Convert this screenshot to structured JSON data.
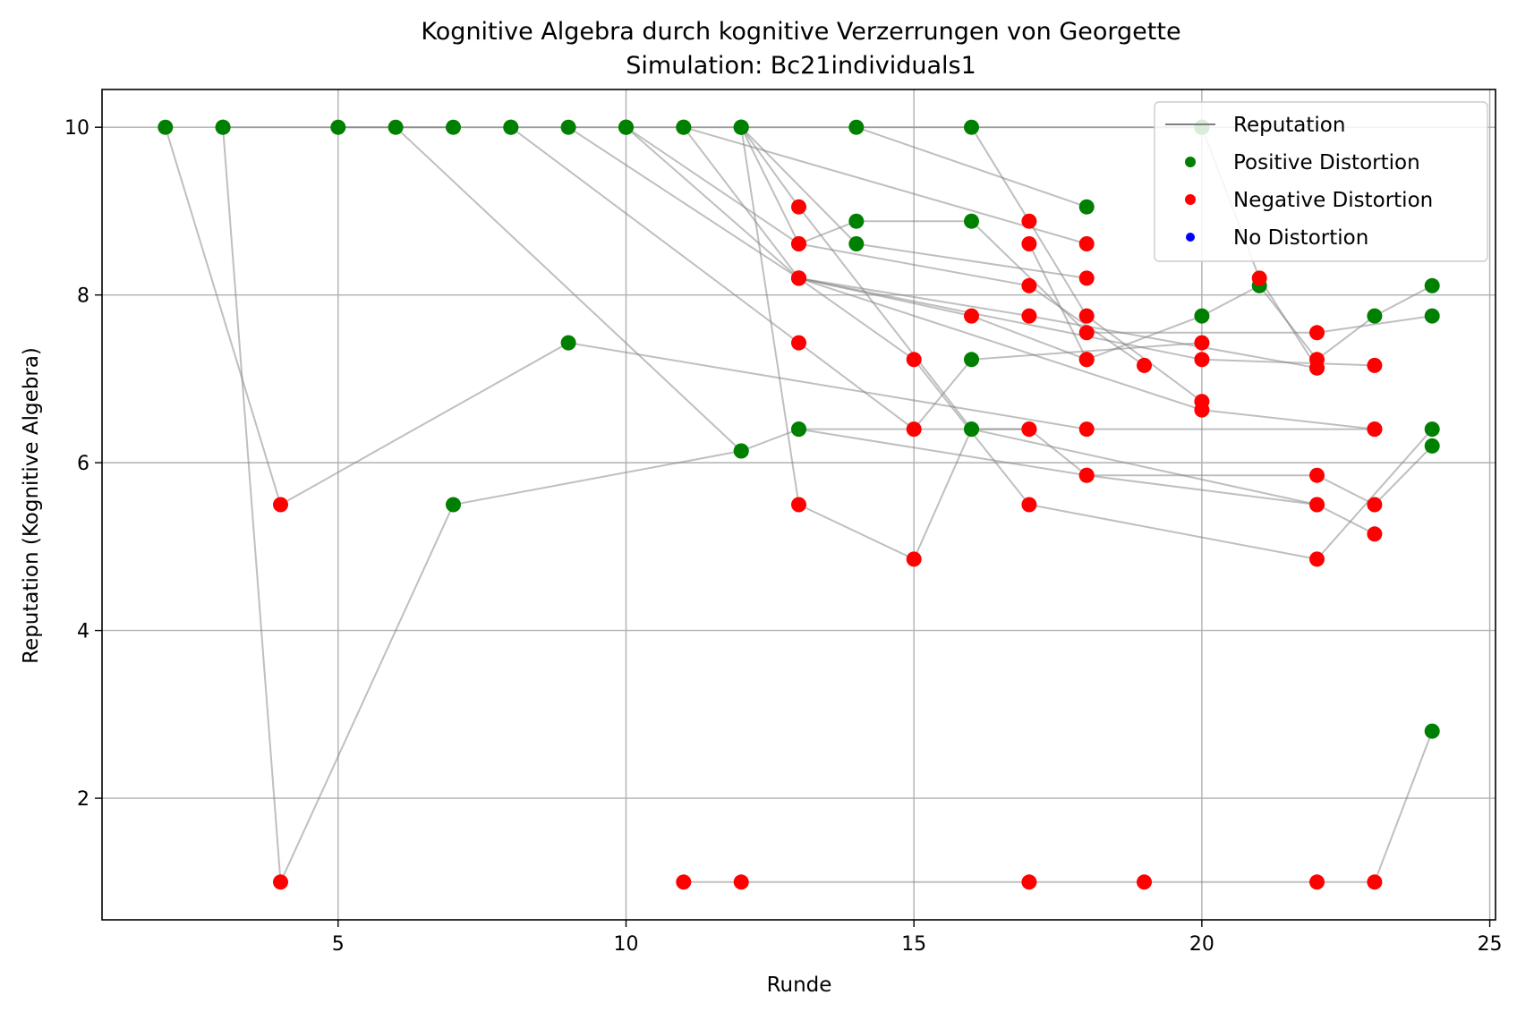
{
  "chart_data": {
    "type": "scatter",
    "title": "Kognitive Algebra durch kognitive Verzerrungen von Georgette",
    "subtitle": "Simulation: Bc21individuals1",
    "xlabel": "Runde",
    "ylabel": "Reputation (Kognitive Algebra)",
    "xlim": [
      0.9,
      25.1
    ],
    "ylim": [
      0.55,
      10.45
    ],
    "xticks": [
      5,
      10,
      15,
      20,
      25
    ],
    "yticks": [
      2,
      4,
      6,
      8,
      10
    ],
    "grid": true,
    "legend_position": "top-right",
    "legend": [
      {
        "label": "Reputation",
        "kind": "line",
        "color": "#808080"
      },
      {
        "label": "Positive Distortion",
        "kind": "marker",
        "color": "#008000"
      },
      {
        "label": "Negative Distortion",
        "kind": "marker",
        "color": "#ff0000"
      },
      {
        "label": "No Distortion",
        "kind": "marker",
        "color": "#0000ff"
      }
    ],
    "colors": {
      "positive": "#008000",
      "negative": "#ff0000",
      "none": "#0000ff",
      "line": "#808080"
    },
    "series": [
      {
        "points": [
          [
            2,
            10
          ],
          [
            4,
            5.5
          ],
          [
            9,
            7.43
          ],
          [
            18,
            6.4
          ],
          [
            23,
            6.4
          ]
        ],
        "types": [
          "pos",
          "neg",
          "pos",
          "neg",
          "neg"
        ]
      },
      {
        "points": [
          [
            3,
            10
          ],
          [
            4,
            1
          ],
          [
            7,
            5.5
          ],
          [
            12,
            6.14
          ],
          [
            13,
            6.4
          ],
          [
            17,
            6.4
          ],
          [
            18,
            5.85
          ],
          [
            22,
            5.85
          ],
          [
            23,
            5.5
          ],
          [
            24,
            6.2
          ]
        ],
        "types": [
          "pos",
          "neg",
          "pos",
          "pos",
          "pos",
          "neg",
          "neg",
          "neg",
          "neg",
          "pos"
        ]
      },
      {
        "points": [
          [
            6,
            10
          ],
          [
            12,
            6.14
          ]
        ],
        "types": [
          "pos",
          "pos"
        ]
      },
      {
        "points": [
          [
            8,
            10
          ],
          [
            13,
            7.43
          ],
          [
            15,
            6.4
          ],
          [
            16,
            7.23
          ],
          [
            20,
            7.43
          ]
        ],
        "types": [
          "pos",
          "neg",
          "neg",
          "pos",
          "neg"
        ]
      },
      {
        "points": [
          [
            9,
            10
          ],
          [
            13,
            8.2
          ],
          [
            16,
            7.75
          ],
          [
            18,
            7.23
          ],
          [
            20,
            7.75
          ],
          [
            21,
            8.11
          ],
          [
            22,
            7.23
          ],
          [
            23,
            7.75
          ],
          [
            24,
            8.11
          ]
        ],
        "types": [
          "pos",
          "neg",
          "neg",
          "neg",
          "pos",
          "pos",
          "neg",
          "pos",
          "pos"
        ]
      },
      {
        "points": [
          [
            10,
            10
          ],
          [
            13,
            8.2
          ],
          [
            17,
            7.75
          ],
          [
            22,
            7.13
          ]
        ],
        "types": [
          "pos",
          "neg",
          "neg",
          "neg"
        ]
      },
      {
        "points": [
          [
            10,
            10
          ],
          [
            13,
            8.61
          ],
          [
            14,
            8.88
          ],
          [
            16,
            8.88
          ],
          [
            18,
            7.55
          ],
          [
            22,
            7.55
          ],
          [
            24,
            7.75
          ]
        ],
        "types": [
          "pos",
          "neg",
          "pos",
          "pos",
          "neg",
          "neg",
          "pos"
        ]
      },
      {
        "points": [
          [
            11,
            10
          ],
          [
            13,
            8.2
          ],
          [
            15,
            7.23
          ],
          [
            17,
            5.5
          ],
          [
            22,
            4.85
          ],
          [
            24,
            6.4
          ]
        ],
        "types": [
          "pos",
          "neg",
          "neg",
          "neg",
          "neg",
          "pos"
        ]
      },
      {
        "points": [
          [
            11,
            10
          ],
          [
            18,
            8.61
          ]
        ],
        "types": [
          "pos",
          "neg"
        ]
      },
      {
        "points": [
          [
            12,
            10
          ],
          [
            14,
            8.61
          ],
          [
            18,
            8.2
          ]
        ],
        "types": [
          "pos",
          "pos",
          "neg"
        ]
      },
      {
        "points": [
          [
            12,
            10
          ],
          [
            13,
            8.61
          ],
          [
            17,
            8.11
          ],
          [
            19,
            7.16
          ]
        ],
        "types": [
          "pos",
          "neg",
          "neg",
          "neg"
        ]
      },
      {
        "points": [
          [
            12,
            10
          ],
          [
            13,
            9.05
          ],
          [
            16,
            6.4
          ],
          [
            17,
            6.4
          ]
        ],
        "types": [
          "pos",
          "neg",
          "pos",
          "neg"
        ]
      },
      {
        "points": [
          [
            14,
            10
          ],
          [
            18,
            9.05
          ]
        ],
        "types": [
          "pos",
          "pos"
        ]
      },
      {
        "points": [
          [
            16,
            10
          ],
          [
            17,
            8.88
          ],
          [
            18,
            7.75
          ],
          [
            20,
            6.73
          ]
        ],
        "types": [
          "pos",
          "neg",
          "neg",
          "neg"
        ]
      },
      {
        "points": [
          [
            13,
            8.2
          ],
          [
            20,
            6.63
          ],
          [
            23,
            6.4
          ]
        ],
        "types": [
          "neg",
          "neg",
          "neg"
        ]
      },
      {
        "points": [
          [
            13,
            8.2
          ],
          [
            20,
            7.23
          ],
          [
            23,
            7.16
          ]
        ],
        "types": [
          "neg",
          "neg",
          "neg"
        ]
      },
      {
        "points": [
          [
            17,
            8.61
          ],
          [
            18,
            7.23
          ]
        ],
        "types": [
          "neg",
          "neg"
        ]
      },
      {
        "points": [
          [
            13,
            6.4
          ],
          [
            18,
            5.85
          ],
          [
            22,
            5.5
          ]
        ],
        "types": [
          "pos",
          "neg",
          "neg"
        ]
      },
      {
        "points": [
          [
            12,
            10
          ],
          [
            13,
            5.5
          ],
          [
            15,
            4.85
          ],
          [
            16,
            6.4
          ],
          [
            22,
            5.5
          ],
          [
            23,
            5.15
          ]
        ],
        "types": [
          "pos",
          "neg",
          "neg",
          "pos",
          "neg",
          "neg"
        ]
      },
      {
        "points": [
          [
            20,
            10
          ],
          [
            21,
            8.2
          ],
          [
            22,
            7.13
          ]
        ],
        "types": [
          "pos",
          "neg",
          "neg"
        ]
      },
      {
        "points": [
          [
            5,
            10
          ],
          [
            8,
            10
          ],
          [
            10,
            10
          ],
          [
            20,
            10
          ]
        ],
        "types": [
          "pos",
          "pos",
          "pos",
          "pos"
        ]
      },
      {
        "points": [
          [
            3,
            10
          ],
          [
            7,
            10
          ]
        ],
        "types": [
          "pos",
          "pos"
        ]
      },
      {
        "points": [
          [
            11,
            1
          ],
          [
            12,
            1
          ],
          [
            17,
            1
          ],
          [
            19,
            1
          ],
          [
            22,
            1
          ],
          [
            23,
            1
          ],
          [
            24,
            2.8
          ]
        ],
        "types": [
          "neg",
          "neg",
          "neg",
          "neg",
          "neg",
          "neg",
          "pos"
        ]
      }
    ]
  }
}
